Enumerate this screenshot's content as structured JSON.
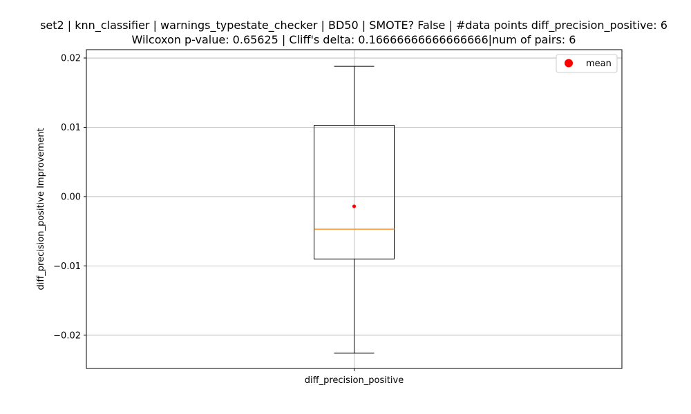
{
  "chart_data": {
    "type": "box",
    "title_line1": "set2 | knn_classifier | warnings_typestate_checker | BD50 | SMOTE? False | #data points diff_precision_positive: 6",
    "title_line2": "Wilcoxon p-value: 0.65625 | Cliff's delta: 0.16666666666666666|num of pairs: 6",
    "ylabel": "diff_precision_positive Improvement",
    "categories": [
      "diff_precision_positive"
    ],
    "ylim": [
      -0.0248,
      0.0212
    ],
    "yticks": [
      0.02,
      0.01,
      0.0,
      -0.01,
      -0.02
    ],
    "ytick_labels": [
      "0.02",
      "0.01",
      "0.00",
      "−0.01",
      "−0.02"
    ],
    "grid": true,
    "box": {
      "whisker_low": -0.0226,
      "q1": -0.009,
      "median": -0.0047,
      "q3": 0.0103,
      "whisker_high": 0.0188,
      "mean": -0.0014
    },
    "legend": {
      "position": "top-right",
      "entries": [
        {
          "label": "mean",
          "color": "#ff0000"
        }
      ]
    },
    "colors": {
      "median": "#ff7f0e",
      "mean": "#ff0000",
      "box": "#000000",
      "grid": "#b0b0b0"
    }
  }
}
